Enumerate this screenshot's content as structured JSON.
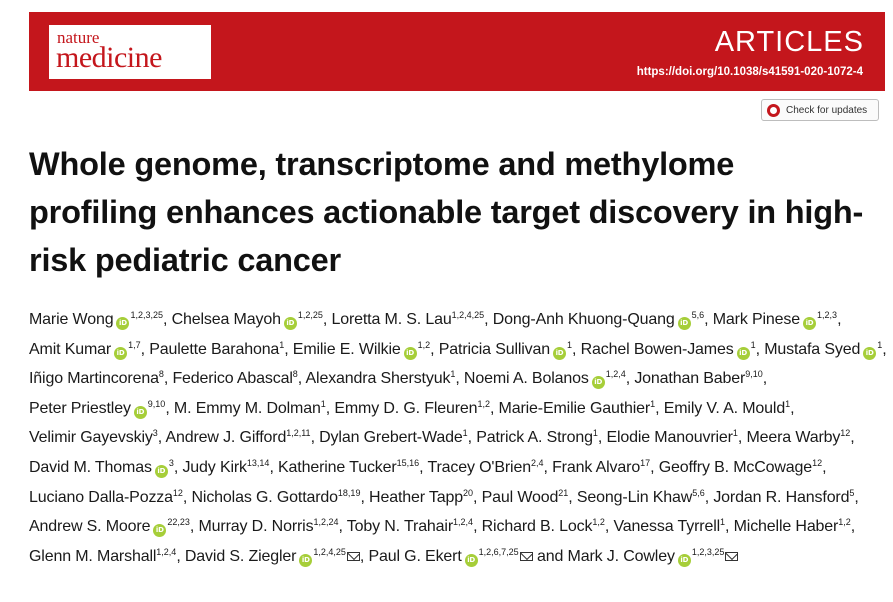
{
  "journal": {
    "name_top": "nature",
    "name_bottom": "medicine"
  },
  "header": {
    "section": "ARTICLES",
    "doi": "https://doi.org/10.1038/s41591-020-1072-4",
    "accent_color": "#c4161c"
  },
  "check_updates": {
    "label": "Check for updates",
    "icon": "check-for-updates-icon"
  },
  "title": "Whole genome, transcriptome and methylome profiling enhances actionable target discovery in high-risk pediatric cancer",
  "orcid_glyph": "iD",
  "authors": [
    {
      "name": "Marie Wong",
      "orcid": true,
      "aff": "1,2,3,25"
    },
    {
      "name": "Chelsea Mayoh",
      "orcid": true,
      "aff": "1,2,25"
    },
    {
      "name": "Loretta M. S. Lau",
      "orcid": false,
      "aff": "1,2,4,25"
    },
    {
      "name": "Dong-Anh Khuong-Quang",
      "orcid": true,
      "aff": "5,6"
    },
    {
      "name": "Mark Pinese",
      "orcid": true,
      "aff": "1,2,3"
    },
    {
      "name": "Amit Kumar",
      "orcid": true,
      "aff": "1,7"
    },
    {
      "name": "Paulette Barahona",
      "orcid": false,
      "aff": "1"
    },
    {
      "name": "Emilie E. Wilkie",
      "orcid": true,
      "aff": "1,2"
    },
    {
      "name": "Patricia Sullivan",
      "orcid": true,
      "aff": "1"
    },
    {
      "name": "Rachel Bowen-James",
      "orcid": true,
      "aff": "1"
    },
    {
      "name": "Mustafa Syed",
      "orcid": true,
      "aff": "1"
    },
    {
      "name": "Iñigo Martincorena",
      "orcid": false,
      "aff": "8"
    },
    {
      "name": "Federico Abascal",
      "orcid": false,
      "aff": "8"
    },
    {
      "name": "Alexandra Sherstyuk",
      "orcid": false,
      "aff": "1"
    },
    {
      "name": "Noemi A. Bolanos",
      "orcid": true,
      "aff": "1,2,4"
    },
    {
      "name": "Jonathan Baber",
      "orcid": false,
      "aff": "9,10"
    },
    {
      "name": "Peter Priestley",
      "orcid": true,
      "aff": "9,10"
    },
    {
      "name": "M. Emmy M. Dolman",
      "orcid": false,
      "aff": "1"
    },
    {
      "name": "Emmy D. G. Fleuren",
      "orcid": false,
      "aff": "1,2"
    },
    {
      "name": "Marie-Emilie Gauthier",
      "orcid": false,
      "aff": "1"
    },
    {
      "name": "Emily V. A. Mould",
      "orcid": false,
      "aff": "1"
    },
    {
      "name": "Velimir Gayevskiy",
      "orcid": false,
      "aff": "3"
    },
    {
      "name": "Andrew J. Gifford",
      "orcid": false,
      "aff": "1,2,11"
    },
    {
      "name": "Dylan Grebert-Wade",
      "orcid": false,
      "aff": "1"
    },
    {
      "name": "Patrick A. Strong",
      "orcid": false,
      "aff": "1"
    },
    {
      "name": "Elodie Manouvrier",
      "orcid": false,
      "aff": "1"
    },
    {
      "name": "Meera Warby",
      "orcid": false,
      "aff": "12"
    },
    {
      "name": "David M. Thomas",
      "orcid": true,
      "aff": "3"
    },
    {
      "name": "Judy Kirk",
      "orcid": false,
      "aff": "13,14"
    },
    {
      "name": "Katherine Tucker",
      "orcid": false,
      "aff": "15,16"
    },
    {
      "name": "Tracey O'Brien",
      "orcid": false,
      "aff": "2,4"
    },
    {
      "name": "Frank Alvaro",
      "orcid": false,
      "aff": "17"
    },
    {
      "name": "Geoffry B. McCowage",
      "orcid": false,
      "aff": "12"
    },
    {
      "name": "Luciano Dalla-Pozza",
      "orcid": false,
      "aff": "12"
    },
    {
      "name": "Nicholas G. Gottardo",
      "orcid": false,
      "aff": "18,19"
    },
    {
      "name": "Heather Tapp",
      "orcid": false,
      "aff": "20"
    },
    {
      "name": "Paul Wood",
      "orcid": false,
      "aff": "21"
    },
    {
      "name": "Seong-Lin Khaw",
      "orcid": false,
      "aff": "5,6"
    },
    {
      "name": "Jordan R. Hansford",
      "orcid": false,
      "aff": "5"
    },
    {
      "name": "Andrew S. Moore",
      "orcid": true,
      "aff": "22,23"
    },
    {
      "name": "Murray D. Norris",
      "orcid": false,
      "aff": "1,2,24"
    },
    {
      "name": "Toby N. Trahair",
      "orcid": false,
      "aff": "1,2,4"
    },
    {
      "name": "Richard B. Lock",
      "orcid": false,
      "aff": "1,2"
    },
    {
      "name": "Vanessa Tyrrell",
      "orcid": false,
      "aff": "1"
    },
    {
      "name": "Michelle Haber",
      "orcid": false,
      "aff": "1,2"
    },
    {
      "name": "Glenn M. Marshall",
      "orcid": false,
      "aff": "1,2,4"
    },
    {
      "name": "David S. Ziegler",
      "orcid": true,
      "aff": "1,2,4,25",
      "corresponding": true
    },
    {
      "name": "Paul G. Ekert",
      "orcid": true,
      "aff": "1,2,6,7,25",
      "corresponding": true
    },
    {
      "name": "Mark J. Cowley",
      "orcid": true,
      "aff": "1,2,3,25",
      "corresponding": true,
      "prefix": "and "
    }
  ]
}
